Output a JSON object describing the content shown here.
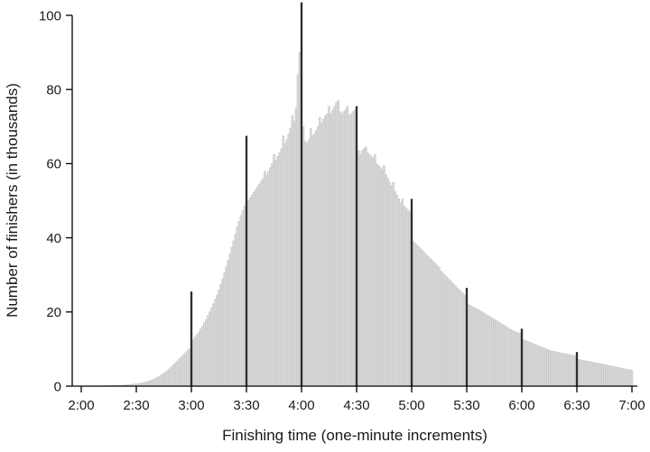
{
  "figure": {
    "background_color": "#ffffff",
    "text_color": "#1a1a1a"
  },
  "chart_data": {
    "type": "bar",
    "title": "",
    "xlabel": "Finishing time (one-minute increments)",
    "ylabel": "Number of finishers (in thousands)",
    "x_tick_labels": [
      "2:00",
      "2:30",
      "3:00",
      "3:30",
      "4:00",
      "4:30",
      "5:00",
      "5:30",
      "6:00",
      "6:30",
      "7:00"
    ],
    "x_tick_minutes": [
      120,
      150,
      180,
      210,
      240,
      270,
      300,
      330,
      360,
      390,
      420
    ],
    "y_ticks": [
      0,
      20,
      40,
      60,
      80,
      100
    ],
    "ylim": [
      0,
      100
    ],
    "x_start_minute": 120,
    "bin_minutes": 1,
    "highlight_minutes": [
      180,
      210,
      240,
      270,
      300,
      330,
      360,
      390
    ],
    "bar_color": "#d9d9d9",
    "bar_edge_color": "#bdbdbd",
    "highlight_color": "#2e2e2e",
    "axis_color": "#000000",
    "values": [
      0.05,
      0.05,
      0.05,
      0.05,
      0.06,
      0.06,
      0.07,
      0.07,
      0.08,
      0.08,
      0.09,
      0.1,
      0.1,
      0.11,
      0.12,
      0.13,
      0.14,
      0.16,
      0.17,
      0.19,
      0.21,
      0.23,
      0.25,
      0.28,
      0.31,
      0.35,
      0.39,
      0.44,
      0.49,
      0.55,
      0.62,
      0.7,
      0.78,
      0.88,
      0.98,
      1.1,
      1.25,
      1.4,
      1.6,
      1.8,
      2.0,
      2.25,
      2.5,
      2.8,
      3.1,
      3.45,
      3.8,
      4.2,
      4.65,
      5.1,
      5.6,
      6.1,
      6.6,
      7.1,
      7.6,
      8.1,
      8.6,
      9.1,
      9.6,
      10.1,
      25.5,
      12.5,
      13.2,
      13.9,
      14.6,
      15.4,
      16.2,
      17.1,
      18.0,
      19.0,
      20.0,
      21.1,
      22.2,
      23.4,
      24.6,
      26.0,
      27.5,
      29.0,
      30.6,
      32.2,
      34.0,
      35.7,
      37.4,
      39.2,
      41.0,
      43.0,
      44.5,
      46.0,
      47.3,
      48.5,
      67.5,
      50.0,
      50.8,
      51.5,
      52.3,
      53.0,
      53.8,
      54.5,
      55.3,
      56.0,
      58.0,
      57.0,
      58.0,
      59.0,
      60.0,
      62.5,
      61.0,
      62.0,
      63.0,
      64.0,
      67.5,
      65.5,
      66.5,
      68.0,
      69.5,
      73.0,
      71.5,
      75.0,
      84.0,
      90.0,
      103.5,
      70.0,
      66.0,
      65.5,
      66.5,
      69.5,
      67.5,
      68.0,
      69.0,
      70.0,
      72.5,
      71.0,
      72.0,
      73.0,
      73.5,
      75.5,
      73.5,
      74.5,
      75.5,
      76.5,
      77.0,
      74.0,
      73.5,
      74.0,
      74.5,
      75.5,
      73.0,
      73.5,
      74.0,
      74.5,
      75.5,
      63.5,
      62.5,
      63.5,
      64.0,
      64.5,
      63.0,
      62.5,
      62.0,
      61.5,
      62.5,
      60.0,
      59.5,
      59.0,
      58.5,
      59.5,
      57.0,
      56.0,
      55.0,
      54.0,
      55.0,
      52.5,
      51.5,
      50.5,
      49.5,
      50.5,
      48.5,
      48.0,
      47.5,
      47.0,
      50.5,
      39.0,
      38.5,
      38.0,
      37.5,
      37.0,
      36.5,
      36.0,
      35.5,
      35.0,
      34.5,
      34.0,
      33.5,
      33.0,
      32.5,
      32.0,
      31.0,
      30.5,
      30.0,
      29.5,
      29.0,
      28.5,
      28.0,
      27.5,
      27.0,
      26.5,
      26.0,
      25.5,
      25.0,
      24.5,
      26.5,
      22.0,
      21.8,
      21.5,
      21.2,
      21.0,
      20.7,
      20.4,
      20.1,
      19.8,
      19.5,
      19.2,
      18.9,
      18.6,
      18.3,
      18.0,
      17.7,
      17.4,
      17.1,
      16.8,
      16.5,
      16.2,
      15.9,
      15.6,
      15.3,
      15.0,
      14.8,
      14.6,
      14.4,
      14.2,
      15.5,
      12.5,
      12.3,
      12.1,
      11.9,
      11.7,
      11.5,
      11.3,
      11.1,
      10.9,
      10.7,
      10.5,
      10.3,
      10.1,
      9.9,
      9.7,
      9.5,
      9.4,
      9.3,
      9.2,
      9.1,
      9.0,
      8.9,
      8.8,
      8.7,
      8.6,
      8.5,
      8.4,
      8.3,
      8.2,
      9.2,
      7.2,
      7.1,
      7.0,
      6.9,
      6.8,
      6.7,
      6.6,
      6.5,
      6.4,
      6.3,
      6.2,
      6.1,
      6.0,
      5.9,
      5.8,
      5.7,
      5.6,
      5.5,
      5.4,
      5.3,
      5.2,
      5.1,
      5.0,
      4.9,
      4.8,
      4.7,
      4.6,
      4.5,
      4.4,
      4.3
    ]
  }
}
